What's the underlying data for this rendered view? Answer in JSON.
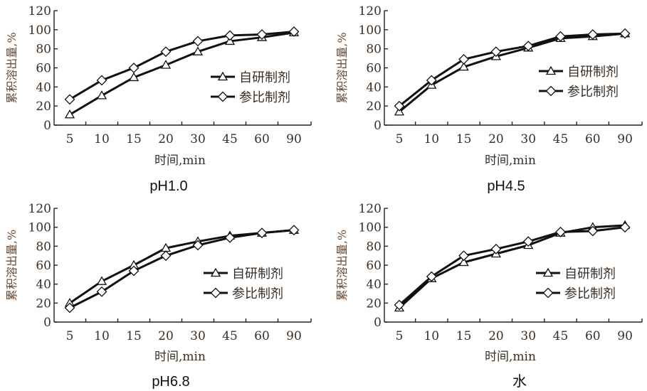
{
  "chart_data": [
    {
      "type": "line",
      "caption": "pH1.0",
      "categories": [
        "5",
        "10",
        "15",
        "20",
        "30",
        "45",
        "60",
        "90"
      ],
      "xlabel": "时间,min",
      "ylabel": "累积溶出量,%",
      "ylim": [
        0,
        120
      ],
      "yticks": [
        "0",
        "20",
        "40",
        "60",
        "80",
        "100",
        "120"
      ],
      "legend_position": "right",
      "series": [
        {
          "name": "自研制剂",
          "marker": "triangle",
          "values": [
            11,
            31,
            50,
            63,
            77,
            88,
            92,
            97
          ]
        },
        {
          "name": "参比制剂",
          "marker": "diamond",
          "values": [
            27,
            47,
            60,
            77,
            88,
            94,
            95,
            98
          ]
        }
      ]
    },
    {
      "type": "line",
      "caption": "pH4.5",
      "categories": [
        "5",
        "10",
        "15",
        "20",
        "30",
        "45",
        "60",
        "90"
      ],
      "xlabel": "时间,min",
      "ylabel": "累积溶出量,%",
      "ylim": [
        0,
        120
      ],
      "yticks": [
        "0",
        "20",
        "40",
        "60",
        "80",
        "100",
        "120"
      ],
      "legend_position": "right",
      "series": [
        {
          "name": "自研制剂",
          "marker": "triangle",
          "values": [
            14,
            42,
            61,
            72,
            81,
            91,
            93,
            96
          ]
        },
        {
          "name": "参比制剂",
          "marker": "diamond",
          "values": [
            20,
            47,
            69,
            77,
            83,
            93,
            95,
            96
          ]
        }
      ]
    },
    {
      "type": "line",
      "caption": "pH6.8",
      "categories": [
        "5",
        "10",
        "15",
        "20",
        "30",
        "45",
        "60",
        "90"
      ],
      "xlabel": "时间,min",
      "ylabel": "累积溶出量,%",
      "ylim": [
        0,
        120
      ],
      "yticks": [
        "0",
        "20",
        "40",
        "60",
        "80",
        "100",
        "120"
      ],
      "legend_position": "right",
      "series": [
        {
          "name": "自研制剂",
          "marker": "triangle",
          "values": [
            20,
            43,
            60,
            78,
            85,
            91,
            94,
            97
          ]
        },
        {
          "name": "参比制剂",
          "marker": "diamond",
          "values": [
            15,
            32,
            54,
            70,
            81,
            89,
            94,
            97
          ]
        }
      ]
    },
    {
      "type": "line",
      "caption": "水",
      "categories": [
        "5",
        "10",
        "15",
        "20",
        "30",
        "45",
        "60",
        "90"
      ],
      "xlabel": "时间,min",
      "ylabel": "累积溶出量,%",
      "ylim": [
        0,
        120
      ],
      "yticks": [
        "0",
        "20",
        "40",
        "60",
        "80",
        "100",
        "120"
      ],
      "legend_position": "right",
      "series": [
        {
          "name": "自研制剂",
          "marker": "triangle",
          "values": [
            15,
            46,
            63,
            72,
            81,
            94,
            100,
            102
          ]
        },
        {
          "name": "参比制剂",
          "marker": "diamond",
          "values": [
            18,
            48,
            70,
            77,
            85,
            95,
            96,
            100
          ]
        }
      ]
    }
  ]
}
